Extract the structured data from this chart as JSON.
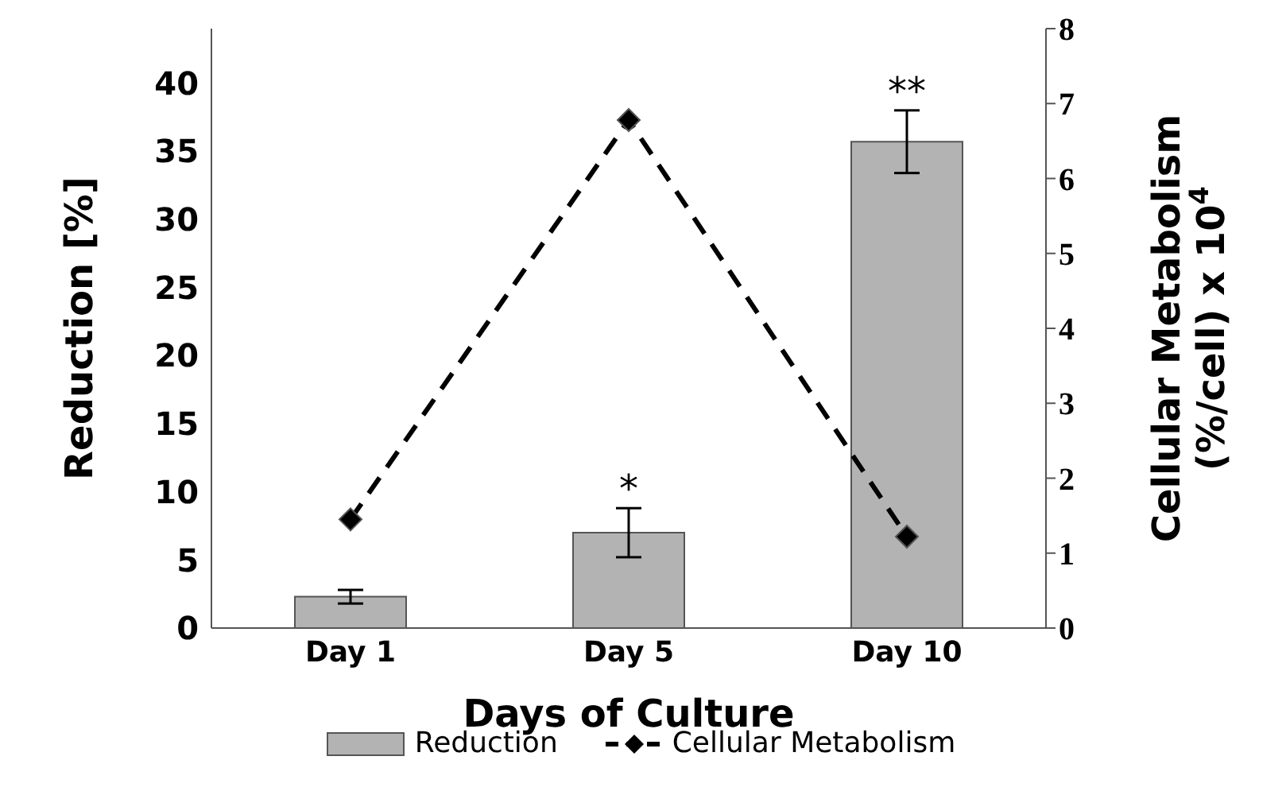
{
  "chart_data": {
    "type": "bar",
    "xlabel": "Days of Culture",
    "ylabel": "Reduction [%]",
    "y2label": "Cellular Metabolism\n(%/cell) x 10$^{4}$",
    "categories": [
      "Day 1",
      "Day 5",
      "Day 10"
    ],
    "series": [
      {
        "name": "Reduction",
        "color": "#b3b3b3",
        "values": [
          2.3,
          7.0,
          35.7
        ],
        "errors": [
          0.5,
          1.8,
          2.3
        ]
      },
      {
        "name": "Cellular Metabolism",
        "type": "line",
        "axis": "y2",
        "color": "#000000",
        "values": [
          1.45,
          6.78,
          1.22
        ],
        "marker": "diamond",
        "line_style": "dashed"
      }
    ],
    "ylim": [
      0,
      44
    ],
    "yticks": [
      0,
      5,
      10,
      15,
      20,
      25,
      30,
      35,
      40
    ],
    "y2lim": [
      0,
      8
    ],
    "y2ticks": [
      0,
      1,
      2,
      3,
      4,
      5,
      6,
      7,
      8
    ],
    "annotations": [
      "*",
      "**"
    ],
    "grid": false,
    "legend": "bottom"
  }
}
